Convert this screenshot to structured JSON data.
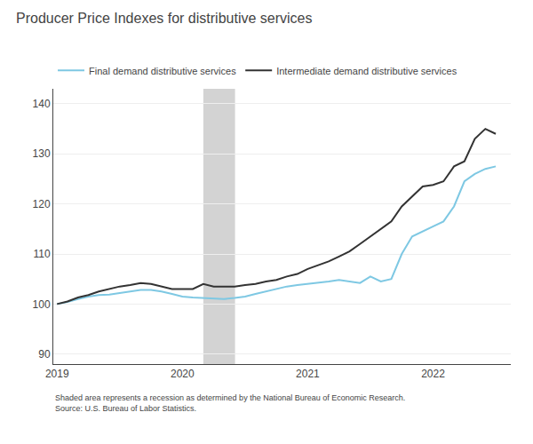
{
  "chart_data": {
    "type": "line",
    "title": "Producer Price Indexes for distributive services",
    "x": [
      2019.0,
      2019.083,
      2019.167,
      2019.25,
      2019.333,
      2019.417,
      2019.5,
      2019.583,
      2019.667,
      2019.75,
      2019.833,
      2019.917,
      2020.0,
      2020.083,
      2020.167,
      2020.25,
      2020.333,
      2020.417,
      2020.5,
      2020.583,
      2020.667,
      2020.75,
      2020.833,
      2020.917,
      2021.0,
      2021.083,
      2021.167,
      2021.25,
      2021.333,
      2021.417,
      2021.5,
      2021.583,
      2021.667,
      2021.75,
      2021.833,
      2021.917,
      2022.0,
      2022.083,
      2022.167,
      2022.25,
      2022.333,
      2022.417,
      2022.5
    ],
    "series": [
      {
        "name": "Final demand distributive services",
        "color": "#7ec8e3",
        "values": [
          100.0,
          100.4,
          101.0,
          101.5,
          101.8,
          101.9,
          102.2,
          102.5,
          102.8,
          102.8,
          102.5,
          102.0,
          101.5,
          101.3,
          101.2,
          101.0,
          101.0,
          101.2,
          101.5,
          102.0,
          102.5,
          103.0,
          103.5,
          103.8,
          104.0,
          104.2,
          104.5,
          104.8,
          104.5,
          104.2,
          105.5,
          104.5,
          105.0,
          110.0,
          113.5,
          114.5,
          115.5,
          116.5,
          119.5,
          124.5,
          126.0,
          127.0,
          127.5
        ]
      },
      {
        "name": "Intermediate demand distributive services",
        "color": "#333333",
        "values": [
          100.0,
          100.5,
          101.3,
          101.8,
          102.5,
          103.0,
          103.5,
          103.8,
          104.2,
          104.0,
          103.5,
          103.0,
          103.0,
          103.0,
          104.0,
          103.5,
          103.5,
          103.5,
          103.8,
          104.0,
          104.5,
          104.8,
          105.5,
          106.0,
          107.0,
          107.8,
          108.5,
          109.5,
          110.5,
          112.0,
          113.5,
          115.0,
          116.5,
          119.5,
          121.5,
          123.5,
          123.8,
          124.5,
          127.5,
          128.5,
          133.0,
          135.0,
          134.0
        ]
      }
    ],
    "shade": {
      "x": [
        2020.167,
        2020.42
      ],
      "color": "#d3d3d3"
    },
    "xlim": [
      2018.97,
      2022.62
    ],
    "xticks": [
      2019,
      2020,
      2021,
      2022
    ],
    "ylim": [
      88,
      143
    ],
    "yticks": [
      90,
      100,
      110,
      120,
      130,
      140
    ],
    "grid": true,
    "legend": "top",
    "annotations": [
      "Shaded area represents a recession as determined by the National Bureau of Economic Research.",
      "Source: U.S. Bureau of Labor Statistics."
    ]
  }
}
